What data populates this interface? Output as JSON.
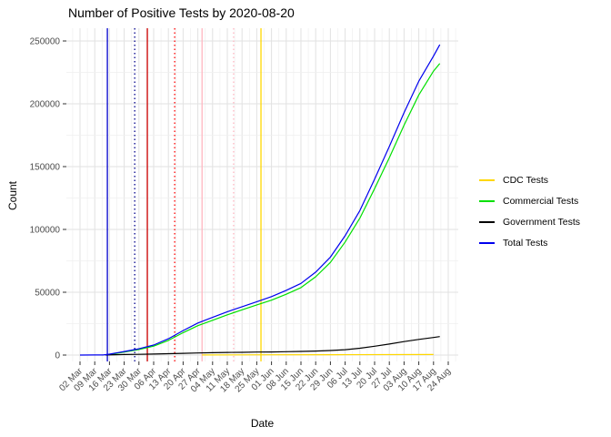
{
  "title": "Number of Positive Tests by  2020-08-20",
  "axes": {
    "x_label": "Date",
    "y_label": "Count"
  },
  "colors": {
    "background": "#FFFFFF",
    "grid_major": "#E2E2E2",
    "grid_minor": "#EFEFEF",
    "tick_mark": "#333333",
    "axis_text": "#4D4D4D"
  },
  "legend": {
    "position": "right",
    "items_from_series": true
  },
  "chart_data": {
    "type": "line",
    "title": "Number of Positive Tests by  2020-08-20",
    "xlabel": "Date",
    "ylabel": "Count",
    "x_start_date": "2020-03-02",
    "x_end_date": "2020-08-24",
    "x_tick_labels": [
      "02 Mar",
      "09 Mar",
      "16 Mar",
      "23 Mar",
      "30 Mar",
      "06 Apr",
      "13 Apr",
      "20 Apr",
      "27 Apr",
      "04 May",
      "11 May",
      "18 May",
      "25 May",
      "01 Jun",
      "08 Jun",
      "15 Jun",
      "22 Jun",
      "29 Jun",
      "06 Jul",
      "13 Jul",
      "20 Jul",
      "27 Jul",
      "03 Aug",
      "10 Aug",
      "17 Aug",
      "24 Aug"
    ],
    "y_ticks": [
      0,
      50000,
      100000,
      150000,
      200000,
      250000
    ],
    "y_tick_labels": [
      "0",
      "50000",
      "100000",
      "150000",
      "200000",
      "250000"
    ],
    "ylim": [
      0,
      250000
    ],
    "grid": true,
    "legend_position": "right",
    "series": [
      {
        "name": "CDC Tests",
        "color": "#FFD700",
        "points": [
          [
            "2020-04-29",
            100
          ],
          [
            "2020-06-01",
            250
          ],
          [
            "2020-07-01",
            300
          ],
          [
            "2020-08-17",
            400
          ]
        ]
      },
      {
        "name": "Commercial Tests",
        "color": "#00E000",
        "points": [
          [
            "2020-03-14",
            100
          ],
          [
            "2020-03-16",
            500
          ],
          [
            "2020-03-23",
            2400
          ],
          [
            "2020-03-30",
            4400
          ],
          [
            "2020-04-06",
            7100
          ],
          [
            "2020-04-13",
            11700
          ],
          [
            "2020-04-20",
            17800
          ],
          [
            "2020-04-27",
            23400
          ],
          [
            "2020-05-04",
            27700
          ],
          [
            "2020-05-11",
            32000
          ],
          [
            "2020-05-18",
            36000
          ],
          [
            "2020-05-25",
            39900
          ],
          [
            "2020-06-01",
            43700
          ],
          [
            "2020-06-08",
            48400
          ],
          [
            "2020-06-15",
            53700
          ],
          [
            "2020-06-22",
            62300
          ],
          [
            "2020-06-29",
            73800
          ],
          [
            "2020-07-06",
            90000
          ],
          [
            "2020-07-13",
            109000
          ],
          [
            "2020-07-20",
            132500
          ],
          [
            "2020-07-27",
            157000
          ],
          [
            "2020-08-03",
            183000
          ],
          [
            "2020-08-10",
            207000
          ],
          [
            "2020-08-17",
            226000
          ],
          [
            "2020-08-20",
            232000
          ]
        ]
      },
      {
        "name": "Government Tests",
        "color": "#000000",
        "points": [
          [
            "2020-03-14",
            50
          ],
          [
            "2020-03-23",
            400
          ],
          [
            "2020-03-30",
            600
          ],
          [
            "2020-04-06",
            800
          ],
          [
            "2020-04-13",
            1100
          ],
          [
            "2020-04-20",
            1400
          ],
          [
            "2020-04-27",
            1700
          ],
          [
            "2020-05-04",
            1900
          ],
          [
            "2020-05-11",
            2100
          ],
          [
            "2020-05-18",
            2200
          ],
          [
            "2020-05-25",
            2400
          ],
          [
            "2020-06-01",
            2500
          ],
          [
            "2020-06-08",
            2700
          ],
          [
            "2020-06-15",
            2900
          ],
          [
            "2020-06-22",
            3200
          ],
          [
            "2020-06-29",
            3600
          ],
          [
            "2020-07-06",
            4300
          ],
          [
            "2020-07-13",
            5400
          ],
          [
            "2020-07-20",
            7000
          ],
          [
            "2020-07-27",
            8800
          ],
          [
            "2020-08-03",
            10700
          ],
          [
            "2020-08-10",
            12500
          ],
          [
            "2020-08-17",
            14000
          ],
          [
            "2020-08-20",
            14700
          ]
        ]
      },
      {
        "name": "Total Tests",
        "color": "#0000EE",
        "points": [
          [
            "2020-03-02",
            0
          ],
          [
            "2020-03-09",
            50
          ],
          [
            "2020-03-13",
            100
          ],
          [
            "2020-03-16",
            700
          ],
          [
            "2020-03-23",
            2800
          ],
          [
            "2020-03-30",
            5000
          ],
          [
            "2020-04-06",
            8000
          ],
          [
            "2020-04-13",
            13000
          ],
          [
            "2020-04-20",
            19500
          ],
          [
            "2020-04-27",
            25500
          ],
          [
            "2020-05-04",
            30000
          ],
          [
            "2020-05-11",
            34500
          ],
          [
            "2020-05-18",
            38500
          ],
          [
            "2020-05-25",
            42500
          ],
          [
            "2020-06-01",
            46500
          ],
          [
            "2020-06-08",
            51500
          ],
          [
            "2020-06-15",
            57000
          ],
          [
            "2020-06-22",
            66000
          ],
          [
            "2020-06-29",
            78000
          ],
          [
            "2020-07-06",
            95000
          ],
          [
            "2020-07-13",
            115000
          ],
          [
            "2020-07-20",
            140000
          ],
          [
            "2020-07-27",
            166000
          ],
          [
            "2020-08-03",
            193000
          ],
          [
            "2020-08-10",
            218000
          ],
          [
            "2020-08-17",
            238000
          ],
          [
            "2020-08-20",
            247000
          ]
        ]
      }
    ],
    "vlines": [
      {
        "date": "2020-03-15",
        "color": "#0000CD",
        "style": "solid"
      },
      {
        "date": "2020-03-28",
        "color": "#00008B",
        "style": "dotted"
      },
      {
        "date": "2020-04-03",
        "color": "#CD0000",
        "style": "solid"
      },
      {
        "date": "2020-04-16",
        "color": "#FF0000",
        "style": "dotted"
      },
      {
        "date": "2020-04-29",
        "color": "#FFB6C1",
        "style": "solid"
      },
      {
        "date": "2020-05-14",
        "color": "#FFB6C1",
        "style": "dotted"
      },
      {
        "date": "2020-05-27",
        "color": "#FFD700",
        "style": "solid"
      }
    ]
  }
}
